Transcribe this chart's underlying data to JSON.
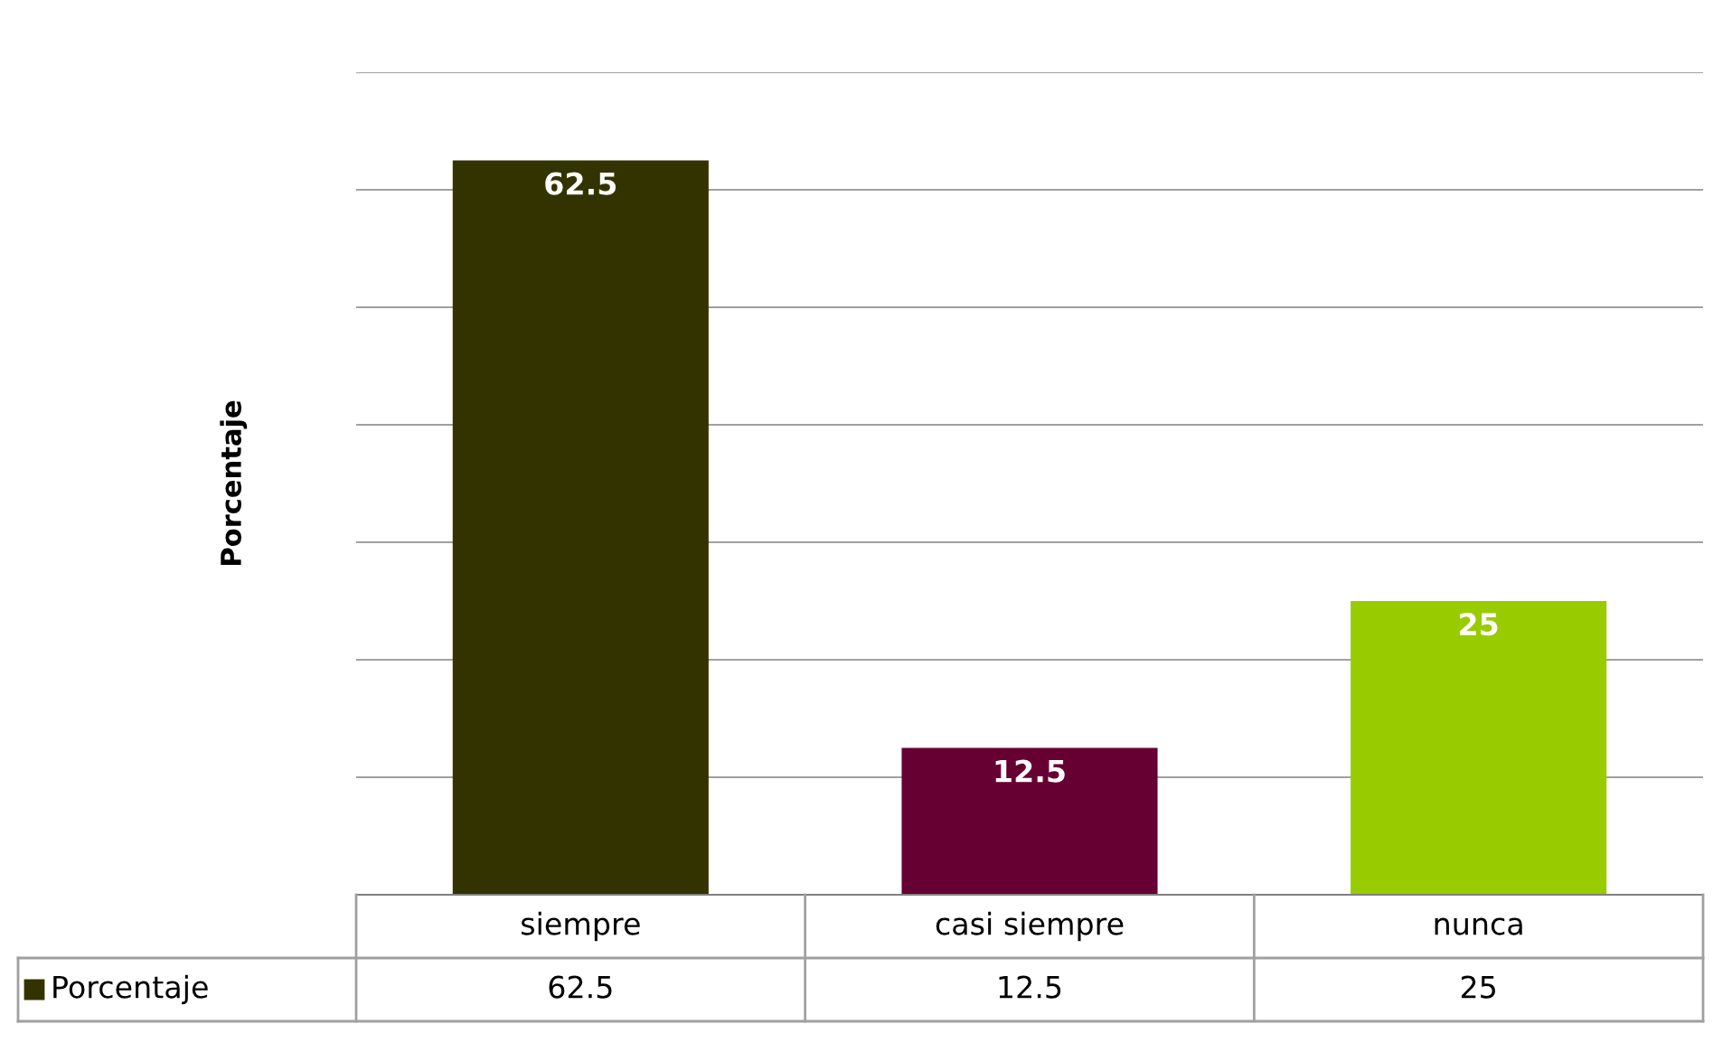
{
  "chart_data": {
    "type": "bar",
    "ylabel": "Porcentaje",
    "categories": [
      "siempre",
      "casi siempre",
      "nunca"
    ],
    "series": [
      {
        "name": "Porcentaje",
        "colors": [
          "#333300",
          "#660033",
          "#99cc00"
        ],
        "color": "#333300",
        "values": [
          62.5,
          12.5,
          25
        ],
        "value_labels": [
          "62.5",
          "12.5",
          "25"
        ]
      }
    ],
    "ylim": [
      0,
      70
    ],
    "yticks": [
      {
        "value": 0,
        "label": null
      },
      {
        "value": 10,
        "label": null
      },
      {
        "value": 20,
        "label": null
      },
      {
        "value": 30,
        "label": null
      },
      {
        "value": 40,
        "label": null
      },
      {
        "value": 50,
        "label": null
      },
      {
        "value": 60,
        "label": null
      },
      {
        "value": 70,
        "label": null
      }
    ],
    "grid": "y",
    "tick_labels": "x",
    "legend": "bottom left",
    "annotations": [
      "62.5",
      "12.5",
      "25"
    ]
  }
}
